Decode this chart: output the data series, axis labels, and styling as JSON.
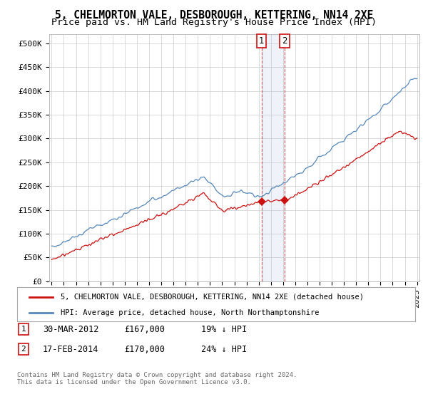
{
  "title": "5, CHELMORTON VALE, DESBOROUGH, KETTERING, NN14 2XE",
  "subtitle": "Price paid vs. HM Land Registry's House Price Index (HPI)",
  "ylabel_ticks": [
    "£0",
    "£50K",
    "£100K",
    "£150K",
    "£200K",
    "£250K",
    "£300K",
    "£350K",
    "£400K",
    "£450K",
    "£500K"
  ],
  "ytick_vals": [
    0,
    50000,
    100000,
    150000,
    200000,
    250000,
    300000,
    350000,
    400000,
    450000,
    500000
  ],
  "ylim": [
    0,
    520000
  ],
  "xlim_start": 1994.8,
  "xlim_end": 2025.2,
  "hpi_color": "#5588bb",
  "price_color": "#cc1111",
  "sale1_date_x": 2012.24,
  "sale1_price": 167000,
  "sale2_date_x": 2014.12,
  "sale2_price": 170000,
  "sale1_label": "1",
  "sale2_label": "2",
  "legend_line1": "5, CHELMORTON VALE, DESBOROUGH, KETTERING, NN14 2XE (detached house)",
  "legend_line2": "HPI: Average price, detached house, North Northamptonshire",
  "footer": "Contains HM Land Registry data © Crown copyright and database right 2024.\nThis data is licensed under the Open Government Licence v3.0.",
  "bg_color": "#ffffff",
  "grid_color": "#cccccc",
  "title_fontsize": 10.5,
  "subtitle_fontsize": 9.5,
  "tick_fontsize": 8,
  "shade_color": "#ddeeff",
  "ann1_num": "1",
  "ann1_date": "30-MAR-2012",
  "ann1_price": "£167,000",
  "ann1_pct": "19% ↓ HPI",
  "ann2_num": "2",
  "ann2_date": "17-FEB-2014",
  "ann2_price": "£170,000",
  "ann2_pct": "24% ↓ HPI"
}
